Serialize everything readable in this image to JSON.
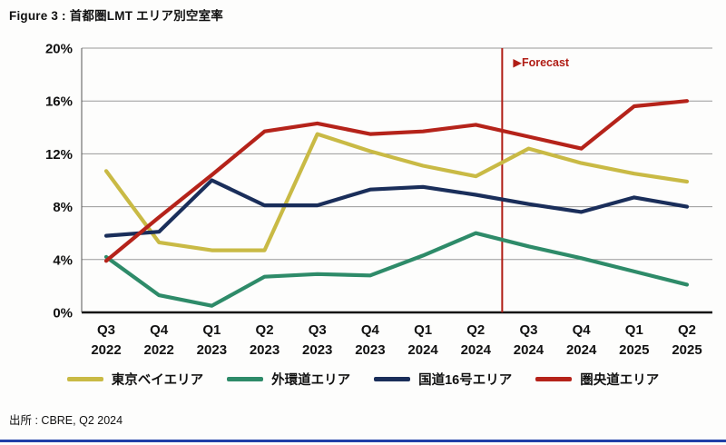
{
  "figure": {
    "title": "Figure 3 : 首都圏LMT エリア別空室率",
    "source": "出所 : CBRE, Q2 2024"
  },
  "colors": {
    "grid": "#999999",
    "axis": "#111111",
    "left_axis": "#555555",
    "forecast": "#b01d15",
    "bottom_border": "#2040a8",
    "text": "#111111"
  },
  "chart_data": {
    "type": "line",
    "title": "首都圏LMT エリア別空室率",
    "xlabel": "",
    "ylabel": "",
    "ylim": [
      0,
      20
    ],
    "yticks": [
      0,
      4,
      8,
      12,
      16,
      20
    ],
    "ytick_suffix": "%",
    "grid": true,
    "legend_position": "bottom",
    "categories": [
      "Q3 2022",
      "Q4 2022",
      "Q1 2023",
      "Q2 2023",
      "Q3 2023",
      "Q4 2023",
      "Q1 2024",
      "Q2 2024",
      "Q3 2024",
      "Q4 2024",
      "Q1 2025",
      "Q2 2025"
    ],
    "series": [
      {
        "key": "tokyo-bay-area",
        "name": "東京ベイエリア",
        "color": "#c9ba45",
        "values": [
          10.7,
          5.3,
          4.7,
          4.7,
          13.5,
          12.2,
          11.1,
          10.3,
          12.4,
          11.3,
          10.5,
          9.9
        ]
      },
      {
        "key": "gaikando-area",
        "name": "外環道エリア",
        "color": "#2e8b69",
        "values": [
          4.2,
          1.3,
          0.5,
          2.7,
          2.9,
          2.8,
          4.3,
          6.0,
          5.0,
          4.1,
          3.1,
          2.1
        ]
      },
      {
        "key": "route16-area",
        "name": "国道16号エリア",
        "color": "#1a2e5a",
        "values": [
          5.8,
          6.1,
          10.0,
          8.1,
          8.1,
          9.3,
          9.5,
          8.9,
          8.2,
          7.6,
          8.7,
          8.0
        ]
      },
      {
        "key": "kenodo-area",
        "name": "圏央道エリア",
        "color": "#b5231a",
        "values": [
          3.9,
          7.2,
          10.4,
          13.7,
          14.3,
          13.5,
          13.7,
          14.2,
          13.3,
          12.4,
          15.6,
          16.0
        ]
      }
    ],
    "forecast_line": {
      "marker": "▶",
      "text": "Forecast",
      "between": [
        "Q2 2024",
        "Q3 2024"
      ],
      "color": "#b01d15"
    }
  }
}
